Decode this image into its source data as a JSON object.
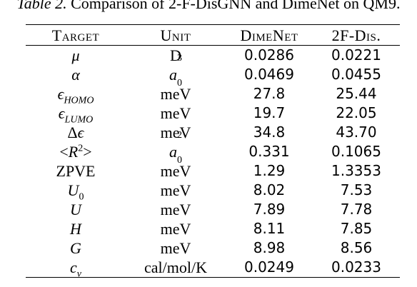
{
  "caption": {
    "label": "Table 2.",
    "text": "Comparison of 2-F-DisGNN and DimeNet on QM9."
  },
  "headers": [
    "Target",
    "Unit",
    "DimeNet",
    "2F-Dis."
  ],
  "rows": [
    {
      "target": "μ",
      "unit": "D",
      "dimenet": "0.0286",
      "f2dis": "0.0221",
      "best": "f2dis"
    },
    {
      "target": "α",
      "unit": "a03",
      "dimenet": "0.0469",
      "f2dis": "0.0455",
      "best": "f2dis"
    },
    {
      "target": "εHOMO",
      "unit": "meV",
      "dimenet": "27.8",
      "f2dis": "25.44",
      "best": "f2dis"
    },
    {
      "target": "εLUMO",
      "unit": "meV",
      "dimenet": "19.7",
      "f2dis": "22.05",
      "best": "dimenet"
    },
    {
      "target": "Δε",
      "unit": "meV",
      "dimenet": "34.8",
      "f2dis": "43.70",
      "best": "dimenet"
    },
    {
      "target": "<R2>",
      "unit": "a02",
      "dimenet": "0.331",
      "f2dis": "0.1065",
      "best": "f2dis"
    },
    {
      "target": "ZPVE",
      "unit": "meV",
      "dimenet": "1.29",
      "f2dis": "1.3353",
      "best": "dimenet"
    },
    {
      "target": "U0",
      "unit": "meV",
      "dimenet": "8.02",
      "f2dis": "7.53",
      "best": "f2dis"
    },
    {
      "target": "U",
      "unit": "meV",
      "dimenet": "7.89",
      "f2dis": "7.78",
      "best": "f2dis"
    },
    {
      "target": "H",
      "unit": "meV",
      "dimenet": "8.11",
      "f2dis": "7.85",
      "best": "f2dis"
    },
    {
      "target": "G",
      "unit": "meV",
      "dimenet": "8.98",
      "f2dis": "8.56",
      "best": "f2dis"
    },
    {
      "target": "cv",
      "unit": "cal/mol/K",
      "dimenet": "0.0249",
      "f2dis": "0.0233",
      "best": "f2dis"
    }
  ]
}
